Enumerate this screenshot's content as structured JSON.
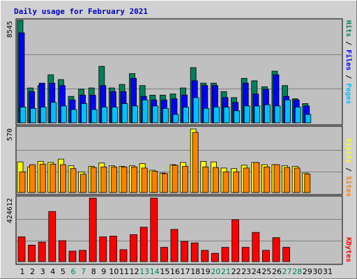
{
  "page": {
    "title": "Daily usage for February 2021"
  },
  "labels": {
    "pages": "Pages",
    "files": "Files",
    "hits": "Hits",
    "sites": "Sites",
    "visits": "Visits",
    "kbytes": "KBytes",
    "sep": " / "
  },
  "colors": {
    "title": "#0000cc",
    "hits": "#00805c",
    "files": "#0000ff",
    "pages": "#00c0ff",
    "visits": "#ffff00",
    "sites": "#ff8000",
    "kbytes": "#ff0000",
    "panel": "#c0c0c0",
    "frame": "#d0d0d0",
    "grid": "#7f7f7f",
    "weekday_label": "#000000",
    "weekend_label": "#00805c"
  },
  "chart_data": [
    {
      "type": "bar",
      "name": "requests",
      "ymax_label": "8545",
      "ylim": [
        0,
        8545
      ],
      "categories": [
        "1",
        "2",
        "3",
        "4",
        "5",
        "6",
        "7",
        "8",
        "9",
        "10",
        "11",
        "12",
        "13",
        "14",
        "15",
        "16",
        "17",
        "18",
        "19",
        "20",
        "21",
        "22",
        "23",
        "24",
        "25",
        "26",
        "27",
        "28",
        "29",
        "30",
        "31"
      ],
      "series": [
        {
          "name": "Hits",
          "values": [
            8545,
            2900,
            3100,
            4000,
            3600,
            2200,
            2800,
            2900,
            4700,
            2900,
            3200,
            4100,
            3100,
            2300,
            2300,
            2400,
            2900,
            4600,
            3300,
            3300,
            2600,
            2100,
            3700,
            3500,
            3000,
            4300,
            3100,
            2000,
            1600,
            0,
            0
          ]
        },
        {
          "name": "Files",
          "values": [
            7500,
            2600,
            3300,
            3300,
            3100,
            1900,
            2300,
            2300,
            3100,
            2600,
            2600,
            3700,
            2200,
            1900,
            1900,
            2000,
            2300,
            3500,
            3100,
            3100,
            2100,
            1700,
            3300,
            2400,
            2800,
            4000,
            2200,
            1900,
            1400,
            0,
            0
          ]
        },
        {
          "name": "Pages",
          "values": [
            1300,
            1200,
            1300,
            1700,
            1400,
            1100,
            1600,
            1100,
            1300,
            1300,
            1600,
            1400,
            1900,
            1400,
            1200,
            700,
            1300,
            2100,
            1200,
            1300,
            1300,
            1000,
            1400,
            1400,
            1500,
            1400,
            1900,
            1300,
            700,
            0,
            0
          ]
        }
      ]
    },
    {
      "type": "bar",
      "name": "visitors",
      "ymax_label": "570",
      "ylim": [
        0,
        570
      ],
      "categories": [
        "1",
        "2",
        "3",
        "4",
        "5",
        "6",
        "7",
        "8",
        "9",
        "10",
        "11",
        "12",
        "13",
        "14",
        "15",
        "16",
        "17",
        "18",
        "19",
        "20",
        "21",
        "22",
        "23",
        "24",
        "25",
        "26",
        "27",
        "28",
        "29",
        "30",
        "31"
      ],
      "series": [
        {
          "name": "Visits",
          "values": [
            275,
            230,
            280,
            270,
            300,
            240,
            185,
            235,
            265,
            240,
            235,
            240,
            260,
            200,
            175,
            250,
            270,
            570,
            280,
            275,
            220,
            215,
            245,
            270,
            250,
            250,
            240,
            235,
            175,
            0,
            0
          ]
        },
        {
          "name": "Sites",
          "values": [
            185,
            250,
            255,
            255,
            250,
            215,
            165,
            225,
            230,
            230,
            230,
            230,
            220,
            190,
            170,
            245,
            235,
            540,
            230,
            225,
            185,
            185,
            220,
            270,
            230,
            250,
            225,
            220,
            165,
            0,
            0
          ]
        }
      ]
    },
    {
      "type": "bar",
      "name": "volume",
      "ymax_label": "424612",
      "ylim": [
        0,
        424612
      ],
      "categories": [
        "1",
        "2",
        "3",
        "4",
        "5",
        "6",
        "7",
        "8",
        "9",
        "10",
        "11",
        "12",
        "13",
        "14",
        "15",
        "16",
        "17",
        "18",
        "19",
        "20",
        "21",
        "22",
        "23",
        "24",
        "25",
        "26",
        "27",
        "28",
        "29",
        "30",
        "31"
      ],
      "series": [
        {
          "name": "KBytes",
          "values": [
            165000,
            110000,
            130000,
            335000,
            140000,
            70000,
            75000,
            424612,
            165000,
            170000,
            80000,
            180000,
            230000,
            424612,
            95000,
            215000,
            135000,
            125000,
            75000,
            55000,
            95000,
            280000,
            95000,
            195000,
            75000,
            160000,
            95000,
            0,
            0,
            0,
            0
          ]
        }
      ]
    }
  ]
}
